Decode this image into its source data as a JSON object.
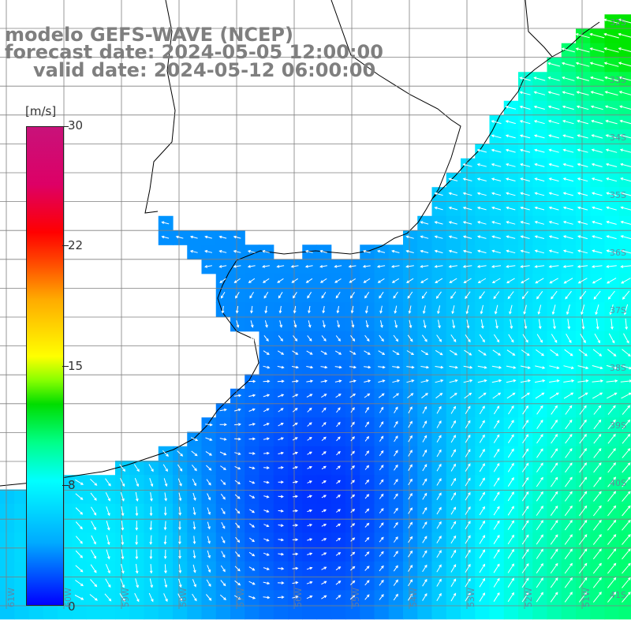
{
  "header": {
    "title": "modelo GEFS-WAVE (NCEP)",
    "forecast_date": "forecast date: 2024-05-05 12:00:00",
    "valid_date": "valid date: 2024-05-12 06:00:00"
  },
  "colorbar": {
    "unit": "[m/s]",
    "ticks": [
      "30",
      "22",
      "15",
      "8",
      "0"
    ],
    "tick_values": [
      30,
      22,
      15,
      8,
      0
    ],
    "min": 0,
    "max": 30
  },
  "axes": {
    "lat_labels": [
      "32S",
      "33S",
      "34S",
      "35S",
      "36S",
      "37S",
      "38S",
      "39S",
      "40S",
      "41S"
    ],
    "lon_labels": [
      "61W",
      "60W",
      "59W",
      "58W",
      "57W",
      "56W",
      "55W",
      "54W",
      "53W",
      "52W",
      "51W"
    ]
  },
  "colors": {
    "land": "#ffffff",
    "coast": "#000000",
    "grid": "#7f7f7f",
    "arrow": "#ffffff",
    "low_speed": "#0000ff",
    "mid_speed": "#00ffff",
    "high_speed": "#00ff66",
    "title": "#7f7f7f"
  },
  "field": {
    "variable": "wind speed",
    "units": "m/s"
  }
}
